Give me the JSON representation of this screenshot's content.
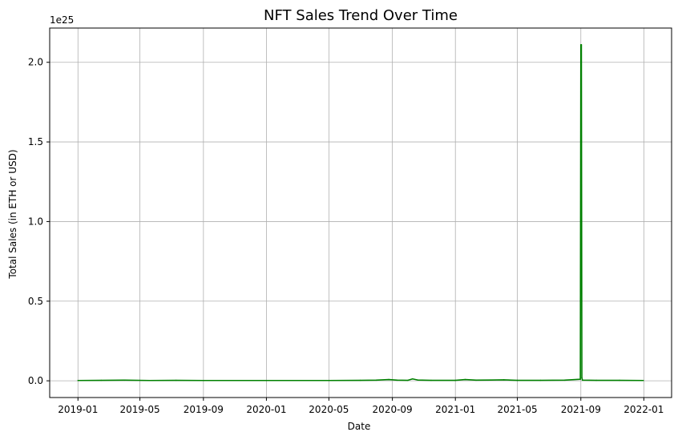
{
  "chart_data": {
    "type": "line",
    "title": "NFT Sales Trend Over Time",
    "xlabel": "Date",
    "ylabel": "Total Sales (in ETH or USD)",
    "y_offset_text": "1e25",
    "grid": true,
    "color": "#008000",
    "x_ticks": [
      "2019-01",
      "2019-05",
      "2019-09",
      "2020-01",
      "2020-05",
      "2020-09",
      "2021-01",
      "2021-05",
      "2021-09",
      "2022-01"
    ],
    "y_ticks": [
      "0.0",
      "0.5",
      "1.0",
      "1.5",
      "2.0"
    ],
    "ylim": [
      -0.105,
      2.215
    ],
    "series": [
      {
        "x": [
          "2019-01-01",
          "2019-02-15",
          "2019-04-01",
          "2019-05-20",
          "2019-07-10",
          "2019-09-01",
          "2019-11-01",
          "2020-01-01",
          "2020-03-01",
          "2020-05-01",
          "2020-07-01",
          "2020-08-01",
          "2020-08-25",
          "2020-09-10",
          "2020-10-01",
          "2020-10-10",
          "2020-10-20",
          "2020-11-15",
          "2021-01-01",
          "2021-01-20",
          "2021-02-10",
          "2021-03-10",
          "2021-04-05",
          "2021-05-01",
          "2021-06-15",
          "2021-08-01",
          "2021-08-31",
          "2021-09-01",
          "2021-09-02",
          "2021-09-03",
          "2021-09-04",
          "2021-10-01",
          "2021-11-15",
          "2021-12-31"
        ],
        "values": [
          0.002,
          0.003,
          0.004,
          0.002,
          0.003,
          0.002,
          0.002,
          0.002,
          0.002,
          0.002,
          0.003,
          0.004,
          0.008,
          0.004,
          0.003,
          0.012,
          0.005,
          0.003,
          0.003,
          0.008,
          0.004,
          0.005,
          0.006,
          0.003,
          0.003,
          0.004,
          0.01,
          2.11,
          2.11,
          0.02,
          0.004,
          0.003,
          0.003,
          0.002
        ]
      }
    ]
  }
}
